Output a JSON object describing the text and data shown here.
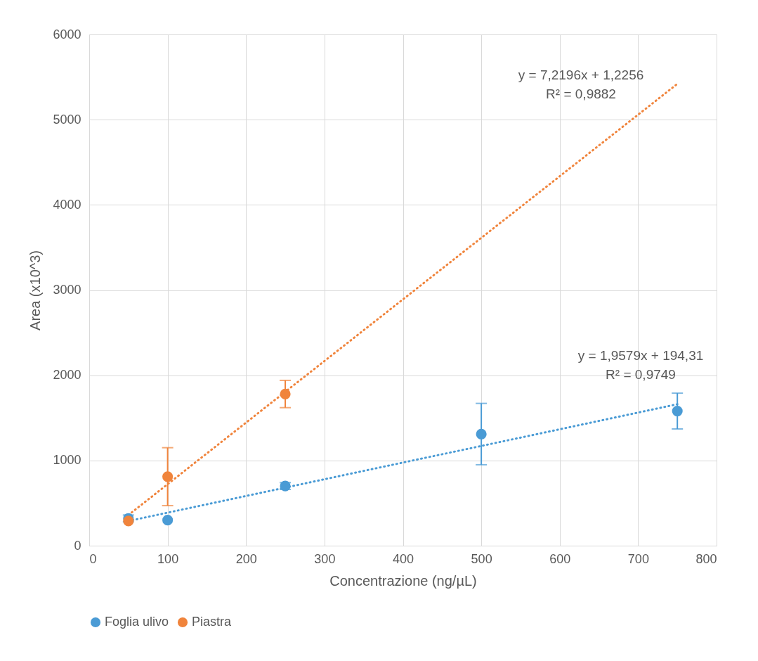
{
  "chart_data": {
    "type": "scatter",
    "xlabel": "Concentrazione  (ng/µL)",
    "ylabel": "Area (x10^3)",
    "xlim": [
      0,
      800
    ],
    "xticks": [
      0,
      100,
      200,
      300,
      400,
      500,
      600,
      700,
      800
    ],
    "ylim": [
      0,
      6000
    ],
    "yticks": [
      0,
      1000,
      2000,
      3000,
      4000,
      5000,
      6000
    ],
    "grid": true,
    "legend": "bottom",
    "series": [
      {
        "name": "Foglia ulivo",
        "color": "#4a9bd5",
        "x": [
          50,
          100,
          250,
          500,
          750
        ],
        "values": [
          320,
          300,
          700,
          1310,
          1580
        ],
        "errors": [
          40,
          null,
          40,
          360,
          210
        ],
        "marker": "circle"
      },
      {
        "name": "Piastra",
        "color": "#f0843c",
        "x": [
          50,
          100,
          250
        ],
        "values": [
          290,
          810,
          1780
        ],
        "errors": [
          null,
          340,
          160
        ],
        "marker": "circle"
      },
      {
        "color": "#4a9bd5",
        "type": "line",
        "line_style": "dotted",
        "marker": "none",
        "x": [
          50,
          750
        ],
        "values": [
          290,
          1660
        ]
      },
      {
        "color": "#f0843c",
        "type": "line",
        "line_style": "dotted",
        "marker": "none",
        "x": [
          50,
          750
        ],
        "values": [
          360,
          5420
        ]
      }
    ],
    "annotations": [
      "y = 7,2196x + 1,2256",
      "R² = 0,9882",
      "y = 1,9579x + 194,31",
      "R² = 0,9749"
    ]
  }
}
